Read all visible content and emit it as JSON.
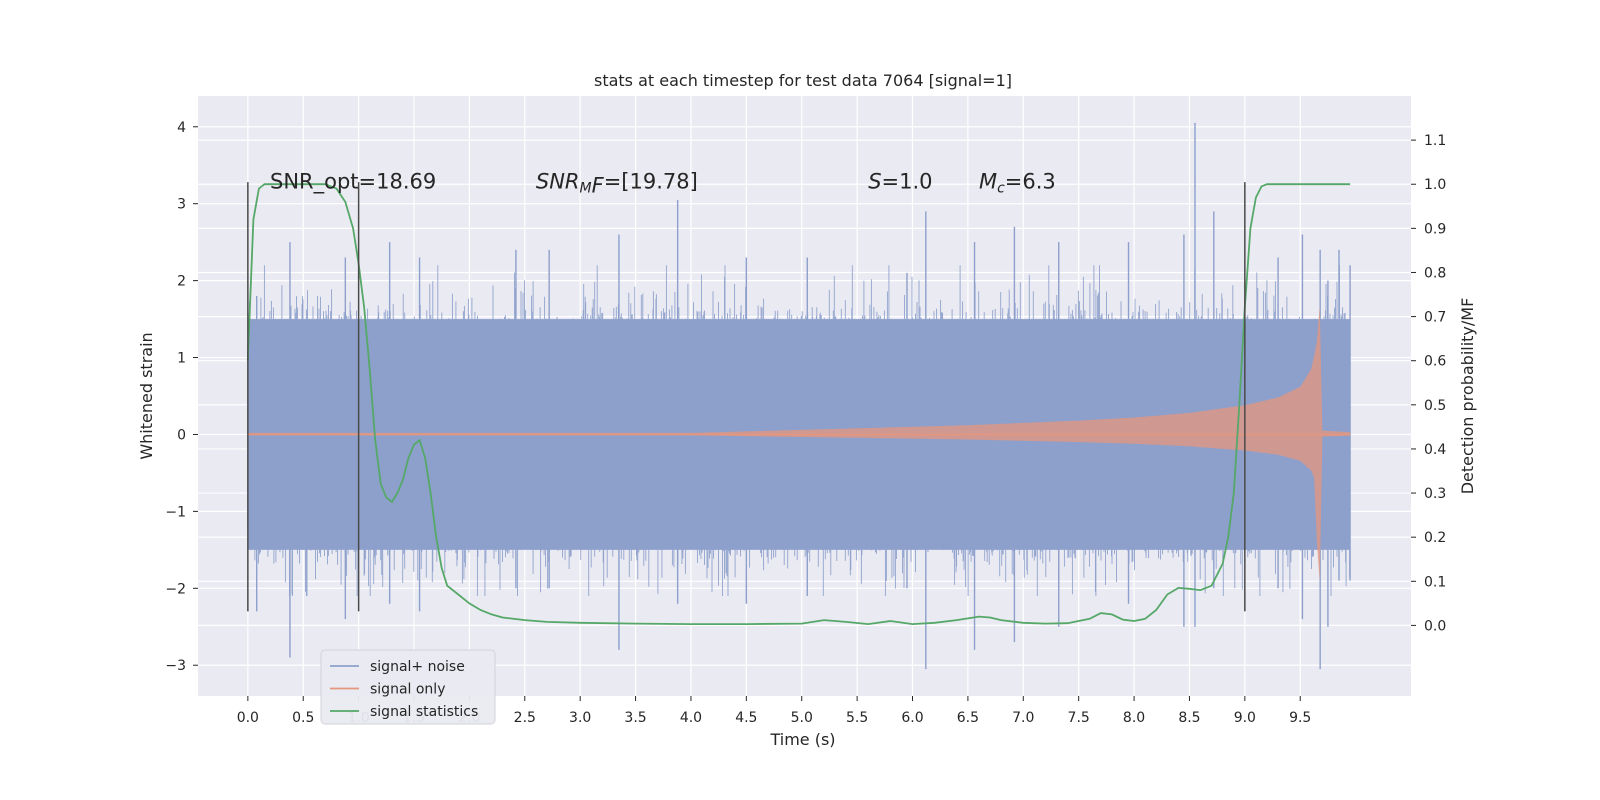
{
  "chart_data": {
    "type": "line",
    "title": "stats at each timestep for test data 7064 [signal=1]",
    "xlabel": "Time (s)",
    "ylabel": "Whitened strain",
    "y2label": "Detection probability/MF",
    "xlim": [
      -0.45,
      10.5
    ],
    "ylim": [
      -3.4,
      4.4
    ],
    "y2lim": [
      -0.16,
      1.2
    ],
    "x_ticks": [
      0.0,
      0.5,
      1.0,
      1.5,
      2.0,
      2.5,
      3.0,
      3.5,
      4.0,
      4.5,
      5.0,
      5.5,
      6.0,
      6.5,
      7.0,
      7.5,
      8.0,
      8.5,
      9.0,
      9.5
    ],
    "x_tick_labels": [
      "0.0",
      "0.5",
      "1.0",
      "1.5",
      "2.0",
      "2.5",
      "3.0",
      "3.5",
      "4.0",
      "4.5",
      "5.0",
      "5.5",
      "6.0",
      "6.5",
      "7.0",
      "7.5",
      "8.0",
      "8.5",
      "9.0",
      "9.5"
    ],
    "y_ticks": [
      -3,
      -2,
      -1,
      0,
      1,
      2,
      3,
      4
    ],
    "y_tick_labels": [
      "−3",
      "−2",
      "−1",
      "0",
      "1",
      "2",
      "3",
      "4"
    ],
    "y2_ticks": [
      0.0,
      0.1,
      0.2,
      0.3,
      0.4,
      0.5,
      0.6,
      0.7,
      0.8,
      0.9,
      1.0,
      1.1
    ],
    "y2_tick_labels": [
      "0.0",
      "0.1",
      "0.2",
      "0.3",
      "0.4",
      "0.5",
      "0.6",
      "0.7",
      "0.8",
      "0.9",
      "1.0",
      "1.1"
    ],
    "grid": true,
    "legend_placement": "lower-left",
    "series": [
      {
        "name": "signal+ noise",
        "axis": "left",
        "color": "#8da0cb",
        "x_range": [
          0.0,
          9.95
        ],
        "envelope_typical": [
          -1.5,
          1.5
        ],
        "x_peaks": [
          0.08,
          0.38,
          0.88,
          1.28,
          1.55,
          2.42,
          2.72,
          3.35,
          3.88,
          4.5,
          5.05,
          5.95,
          6.12,
          6.56,
          6.92,
          7.32,
          7.95,
          8.45,
          8.55,
          8.72,
          9.3,
          9.52,
          9.68,
          9.75,
          9.85,
          9.95
        ],
        "y_max_peaks": [
          1.8,
          2.5,
          2.3,
          2.5,
          2.3,
          2.4,
          2.4,
          2.6,
          3.05,
          2.3,
          2.3,
          2.1,
          2.9,
          2.5,
          2.7,
          2.5,
          2.5,
          2.6,
          4.05,
          2.9,
          2.3,
          2.6,
          2.4,
          2.0,
          2.4,
          2.2
        ],
        "y_min_peaks": [
          -2.3,
          -2.9,
          -2.4,
          -2.2,
          -2.3,
          -2.0,
          -2.0,
          -2.8,
          -2.2,
          -2.2,
          -2.1,
          -2.0,
          -3.05,
          -2.8,
          -2.7,
          -2.5,
          -2.2,
          -2.5,
          -2.5,
          -2.0,
          -2.0,
          -2.4,
          -3.05,
          -2.5,
          -1.9,
          -1.9
        ]
      },
      {
        "name": "signal only",
        "axis": "left",
        "color": "#e5967d",
        "x_range": [
          0.0,
          9.95
        ],
        "chirp_end_time": 9.68,
        "amplitude_x": [
          0.0,
          4.0,
          5.0,
          5.5,
          6.0,
          6.5,
          7.0,
          7.5,
          8.0,
          8.5,
          9.0,
          9.3,
          9.5,
          9.6,
          9.65,
          9.68,
          9.7,
          9.95
        ],
        "amplitude_y": [
          0.02,
          0.02,
          0.06,
          0.08,
          0.1,
          0.12,
          0.15,
          0.18,
          0.22,
          0.28,
          0.38,
          0.48,
          0.62,
          0.85,
          1.2,
          1.75,
          0.05,
          0.03
        ]
      },
      {
        "name": "signal statistics",
        "axis": "right",
        "color": "#55a868",
        "x": [
          0.0,
          0.05,
          0.1,
          0.15,
          0.25,
          0.4,
          0.55,
          0.7,
          0.8,
          0.88,
          0.95,
          1.0,
          1.05,
          1.1,
          1.15,
          1.2,
          1.25,
          1.3,
          1.35,
          1.4,
          1.45,
          1.5,
          1.55,
          1.6,
          1.65,
          1.7,
          1.75,
          1.8,
          1.9,
          2.0,
          2.1,
          2.2,
          2.3,
          2.5,
          2.7,
          3.0,
          3.5,
          4.0,
          4.5,
          5.0,
          5.2,
          5.4,
          5.6,
          5.8,
          6.0,
          6.2,
          6.4,
          6.6,
          6.7,
          6.8,
          7.0,
          7.2,
          7.4,
          7.6,
          7.7,
          7.8,
          7.9,
          8.0,
          8.1,
          8.2,
          8.3,
          8.4,
          8.5,
          8.6,
          8.7,
          8.8,
          8.85,
          8.9,
          8.95,
          9.0,
          9.05,
          9.1,
          9.15,
          9.2,
          9.3,
          9.5,
          9.7,
          9.95
        ],
        "y": [
          0.6,
          0.92,
          0.99,
          1.0,
          1.0,
          1.0,
          1.0,
          1.0,
          0.99,
          0.96,
          0.9,
          0.82,
          0.72,
          0.58,
          0.42,
          0.32,
          0.29,
          0.28,
          0.3,
          0.33,
          0.38,
          0.41,
          0.42,
          0.38,
          0.3,
          0.2,
          0.13,
          0.09,
          0.07,
          0.05,
          0.035,
          0.025,
          0.018,
          0.012,
          0.008,
          0.006,
          0.004,
          0.003,
          0.003,
          0.004,
          0.012,
          0.008,
          0.003,
          0.01,
          0.003,
          0.006,
          0.012,
          0.02,
          0.018,
          0.012,
          0.006,
          0.004,
          0.005,
          0.015,
          0.028,
          0.025,
          0.013,
          0.01,
          0.015,
          0.035,
          0.07,
          0.085,
          0.083,
          0.08,
          0.09,
          0.14,
          0.2,
          0.3,
          0.5,
          0.72,
          0.9,
          0.97,
          0.995,
          1.0,
          1.0,
          1.0,
          1.0,
          1.0
        ]
      }
    ],
    "vertical_markers": [
      {
        "x": 0.0,
        "y_from": -2.3,
        "y_to": 3.28
      },
      {
        "x": 1.0,
        "y_from": -2.3,
        "y_to": 3.28
      },
      {
        "x": 9.0,
        "y_from": -2.3,
        "y_to": 3.28
      }
    ],
    "annotations": [
      {
        "x": 0.2,
        "y": 3.2,
        "text": "SNR_opt=18.69",
        "kind": "plain"
      },
      {
        "x": 2.6,
        "y": 3.2,
        "base": "SNR",
        "sub": "M",
        "tail": "F=[19.78]",
        "kind": "math"
      },
      {
        "x": 5.6,
        "y": 3.2,
        "base": "S",
        "sub": "",
        "tail": "=1.0",
        "kind": "math"
      },
      {
        "x": 6.6,
        "y": 3.2,
        "base": "M",
        "sub": "c",
        "tail": "=6.3",
        "kind": "math"
      }
    ]
  }
}
